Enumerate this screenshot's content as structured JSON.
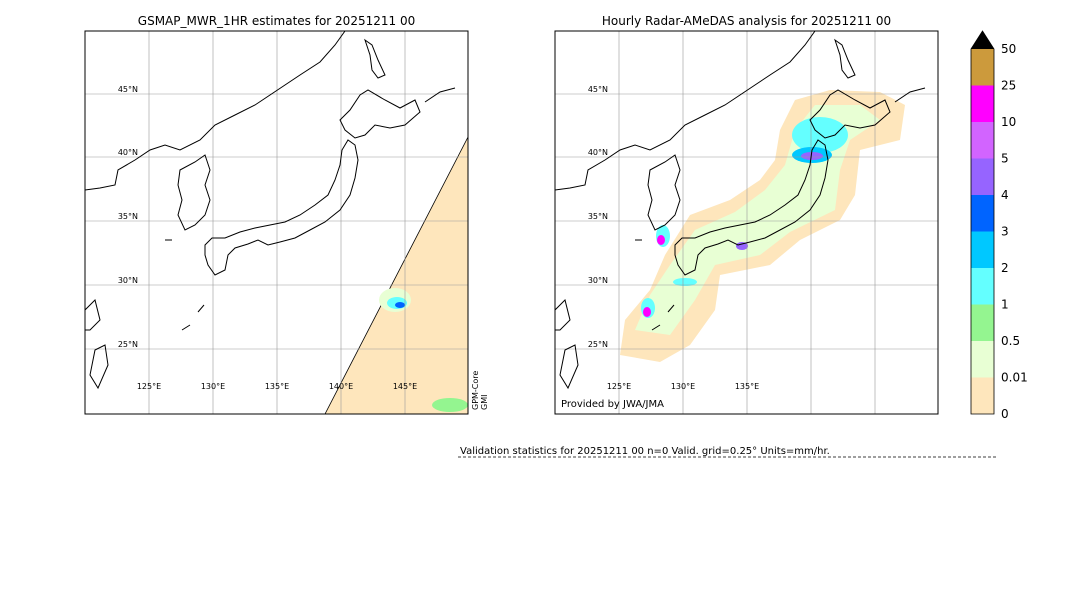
{
  "left_map": {
    "title": "GSMAP_MWR_1HR estimates for 20251211 00",
    "lat_labels": [
      "45°N",
      "40°N",
      "35°N",
      "30°N",
      "25°N"
    ],
    "lon_labels": [
      "125°E",
      "130°E",
      "135°E",
      "140°E",
      "145°E"
    ],
    "satellite_label": [
      "GPM-Core",
      "GMI"
    ]
  },
  "right_map": {
    "title": "Hourly Radar-AMeDAS analysis for 20251211 00",
    "lat_labels": [
      "45°N",
      "40°N",
      "35°N",
      "30°N",
      "25°N"
    ],
    "lon_labels": [
      "125°E",
      "130°E",
      "135°E"
    ],
    "credit": "Provided by JWA/JMA"
  },
  "colorbar": {
    "levels": [
      {
        "label": "0",
        "color": "#fee6bc"
      },
      {
        "label": "0.01",
        "color": "#e8ffd4"
      },
      {
        "label": "0.5",
        "color": "#94f590"
      },
      {
        "label": "1",
        "color": "#64ffff"
      },
      {
        "label": "2",
        "color": "#00c8ff"
      },
      {
        "label": "3",
        "color": "#0064ff"
      },
      {
        "label": "4",
        "color": "#9664ff"
      },
      {
        "label": "5",
        "color": "#d264ff"
      },
      {
        "label": "10",
        "color": "#ff00ff"
      },
      {
        "label": "25",
        "color": "#cc9a3c"
      },
      {
        "label": "50",
        "color": "#000000"
      }
    ]
  },
  "validation": {
    "text": "Validation statistics for 20251211 00  n=0 Valid. grid=0.25° Units=mm/hr."
  }
}
